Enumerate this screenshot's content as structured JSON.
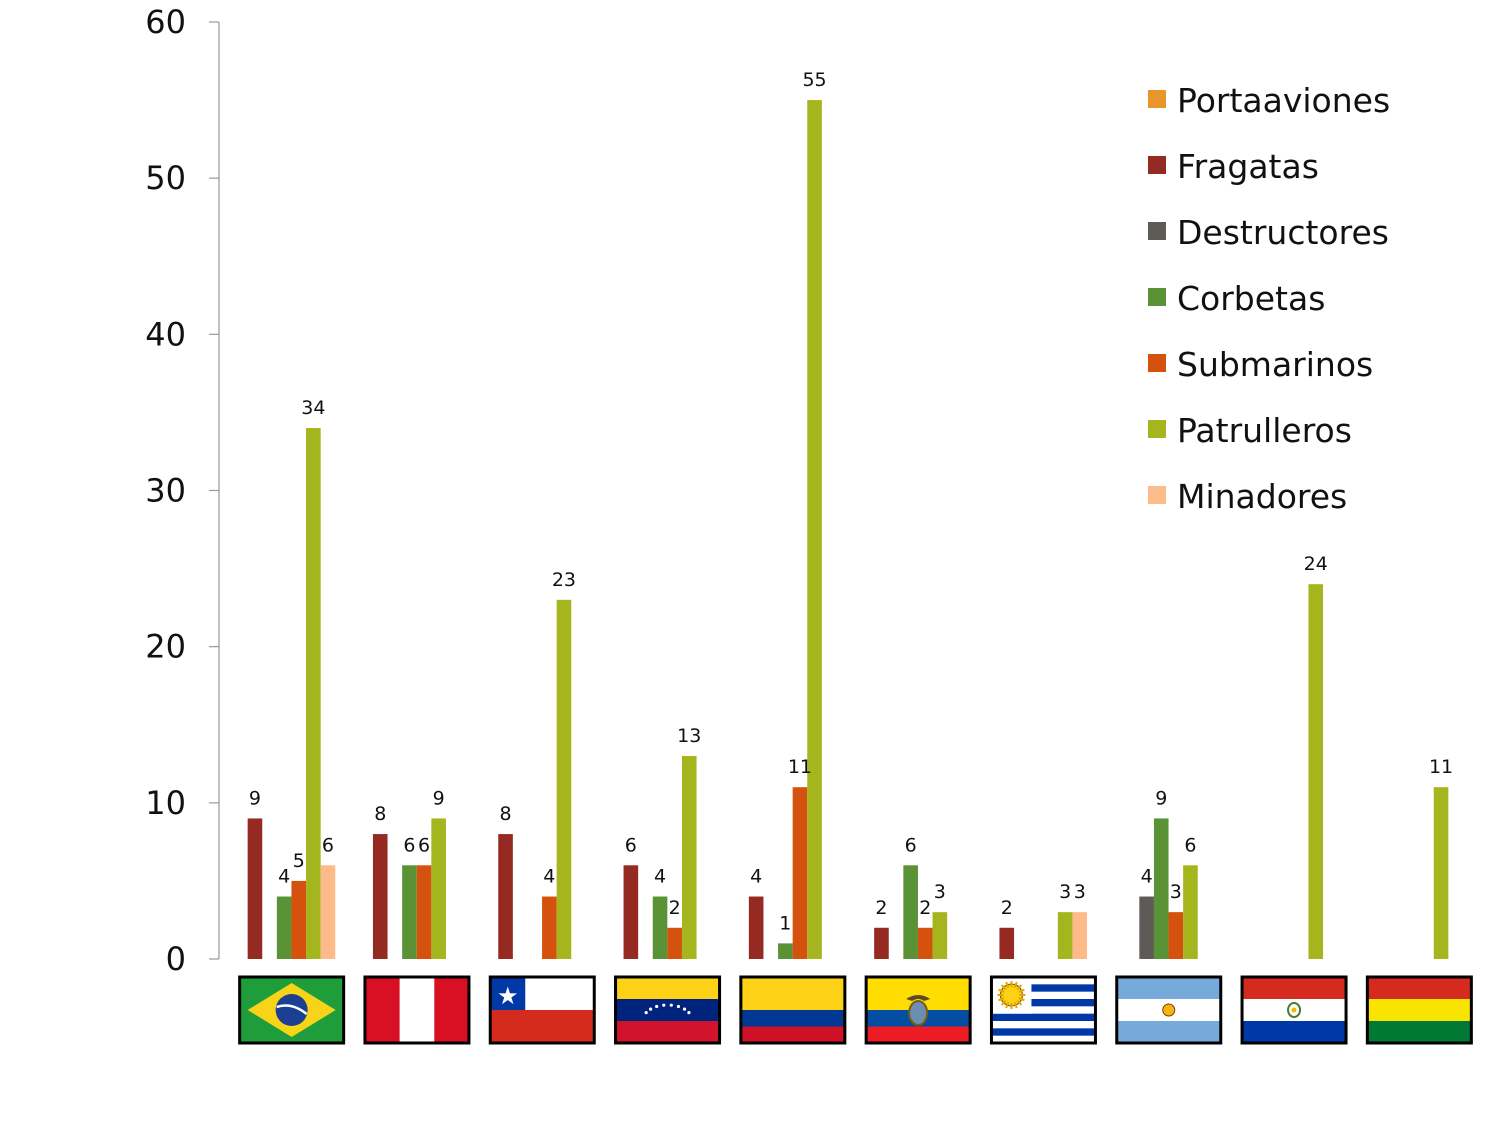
{
  "chart_data": {
    "type": "bar",
    "title": "",
    "xlabel": "",
    "ylabel": "",
    "ylim": [
      0,
      60
    ],
    "yticks": [
      0,
      10,
      20,
      30,
      40,
      50,
      60
    ],
    "grid": false,
    "legend_position": "top-right",
    "categories": [
      "Brasil",
      "Perú",
      "Chile",
      "Venezuela",
      "Colombia",
      "Ecuador",
      "Uruguay",
      "Argentina",
      "Paraguay",
      "Bolivia"
    ],
    "category_flags": [
      "brazil-flag-icon",
      "peru-flag-icon",
      "chile-flag-icon",
      "venezuela-flag-icon",
      "colombia-flag-icon",
      "ecuador-flag-icon",
      "uruguay-flag-icon",
      "argentina-flag-icon",
      "paraguay-flag-icon",
      "bolivia-flag-icon"
    ],
    "series": [
      {
        "name": "Portaaviones",
        "color": "#E8962A",
        "values": [
          0,
          0,
          0,
          0,
          0,
          0,
          0,
          0,
          0,
          0
        ]
      },
      {
        "name": "Fragatas",
        "color": "#952A23",
        "values": [
          9,
          8,
          8,
          6,
          4,
          2,
          2,
          0,
          0,
          0
        ]
      },
      {
        "name": "Destructores",
        "color": "#5E5A55",
        "values": [
          0,
          0,
          0,
          0,
          0,
          0,
          0,
          4,
          0,
          0
        ]
      },
      {
        "name": "Corbetas",
        "color": "#5A9236",
        "values": [
          4,
          6,
          0,
          4,
          1,
          6,
          0,
          9,
          0,
          0
        ]
      },
      {
        "name": "Submarinos",
        "color": "#D4520E",
        "values": [
          5,
          6,
          4,
          2,
          11,
          2,
          0,
          3,
          0,
          0
        ]
      },
      {
        "name": "Patrulleros",
        "color": "#A5B51D",
        "values": [
          34,
          9,
          23,
          13,
          55,
          3,
          3,
          6,
          24,
          11
        ]
      },
      {
        "name": "Minadores",
        "color": "#FDBB8A",
        "values": [
          6,
          0,
          0,
          0,
          0,
          0,
          3,
          0,
          0,
          0
        ]
      }
    ]
  }
}
